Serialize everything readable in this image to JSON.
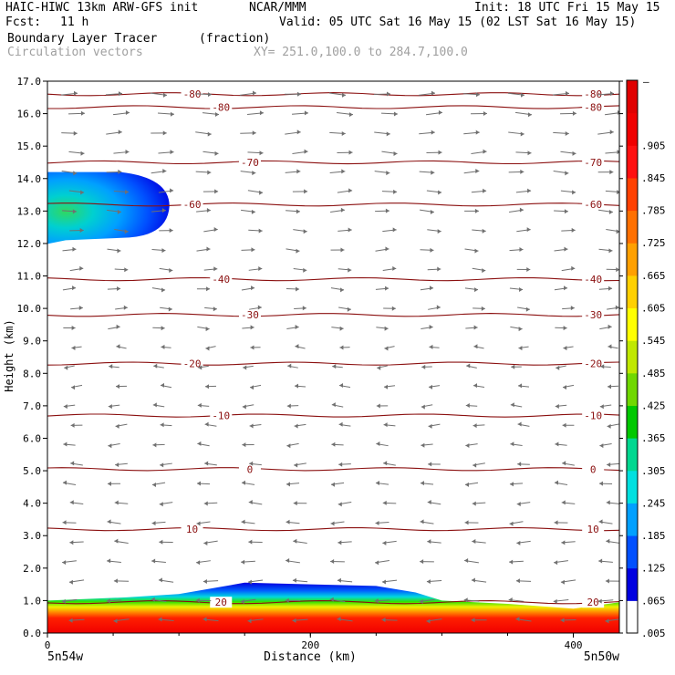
{
  "header": {
    "model_title": "HAIC-HIWC 13km ARW-GFS init",
    "org": "NCAR/MMM",
    "init": "Init: 18 UTC Fri 15 May 15",
    "fcst_label": "Fcst:",
    "fcst_value": "11 h",
    "valid": "Valid: 05 UTC Sat 16 May 15 (02 LST Sat 16 May 15)",
    "field_name": "Boundary Layer Tracer",
    "field_units": "(fraction)",
    "vector_label": "Circulation vectors",
    "xy_label": "XY= 251.0,100.0 to 284.7,100.0"
  },
  "axes": {
    "xlabel": "Distance (km)",
    "ylabel": "Height (km)",
    "left_endpoint": "5n54w",
    "right_endpoint": "5n50w"
  },
  "colorbar": {
    "top_label": "–",
    "labels": [
      ".905",
      ".845",
      ".785",
      ".725",
      ".665",
      ".605",
      ".545",
      ".485",
      ".425",
      ".365",
      ".305",
      ".245",
      ".185",
      ".125",
      ".065",
      ".005"
    ],
    "colors": [
      "#ffffff",
      "#0000e0",
      "#0050ff",
      "#00a0ff",
      "#00e0e0",
      "#00d890",
      "#00c800",
      "#70d800",
      "#c0e800",
      "#ffff00",
      "#ffd000",
      "#ffa000",
      "#ff7000",
      "#ff4000",
      "#ff1010",
      "#f00000",
      "#e00000"
    ]
  },
  "chart_data": {
    "type": "heatmap",
    "title": "Boundary Layer Tracer",
    "xlabel": "Distance (km)",
    "ylabel": "Height (km)",
    "xlim": [
      0,
      435
    ],
    "ylim": [
      0,
      17
    ],
    "x_ticks": [
      0,
      200,
      400
    ],
    "y_ticks": [
      "0.0",
      "1.0",
      "2.0",
      "3.0",
      "4.0",
      "5.0",
      "6.0",
      "7.0",
      "8.0",
      "9.0",
      "10.0",
      "11.0",
      "12.0",
      "13.0",
      "14.0",
      "15.0",
      "16.0",
      "17.0"
    ],
    "tracer_layer_top_km": {
      "x": [
        0,
        30,
        60,
        100,
        150,
        200,
        250,
        280,
        300,
        350,
        400,
        435
      ],
      "top": [
        1.0,
        1.05,
        1.1,
        1.2,
        1.55,
        1.5,
        1.45,
        1.25,
        1.0,
        0.9,
        0.75,
        0.95
      ]
    },
    "upper_plume": {
      "x_range": [
        0,
        90
      ],
      "z_range": [
        12.1,
        14.2
      ],
      "max_fraction": 0.5
    },
    "temperature_contours": [
      {
        "label": "-80",
        "height_km": 16.6
      },
      {
        "label": "-80",
        "height_km": 16.2
      },
      {
        "label": "-70",
        "height_km": 14.5
      },
      {
        "label": "-60",
        "height_km": 13.2
      },
      {
        "label": "-40",
        "height_km": 10.9
      },
      {
        "label": "-30",
        "height_km": 9.8
      },
      {
        "label": "-20",
        "height_km": 8.3
      },
      {
        "label": "-10",
        "height_km": 6.7
      },
      {
        "label": "0",
        "height_km": 5.05
      },
      {
        "label": "10",
        "height_km": 3.2
      },
      {
        "label": "20",
        "height_km": 0.95
      }
    ],
    "vectors": {
      "upper_direction": "east",
      "lower_direction": "west",
      "reversal_height_km": 9.0
    }
  }
}
